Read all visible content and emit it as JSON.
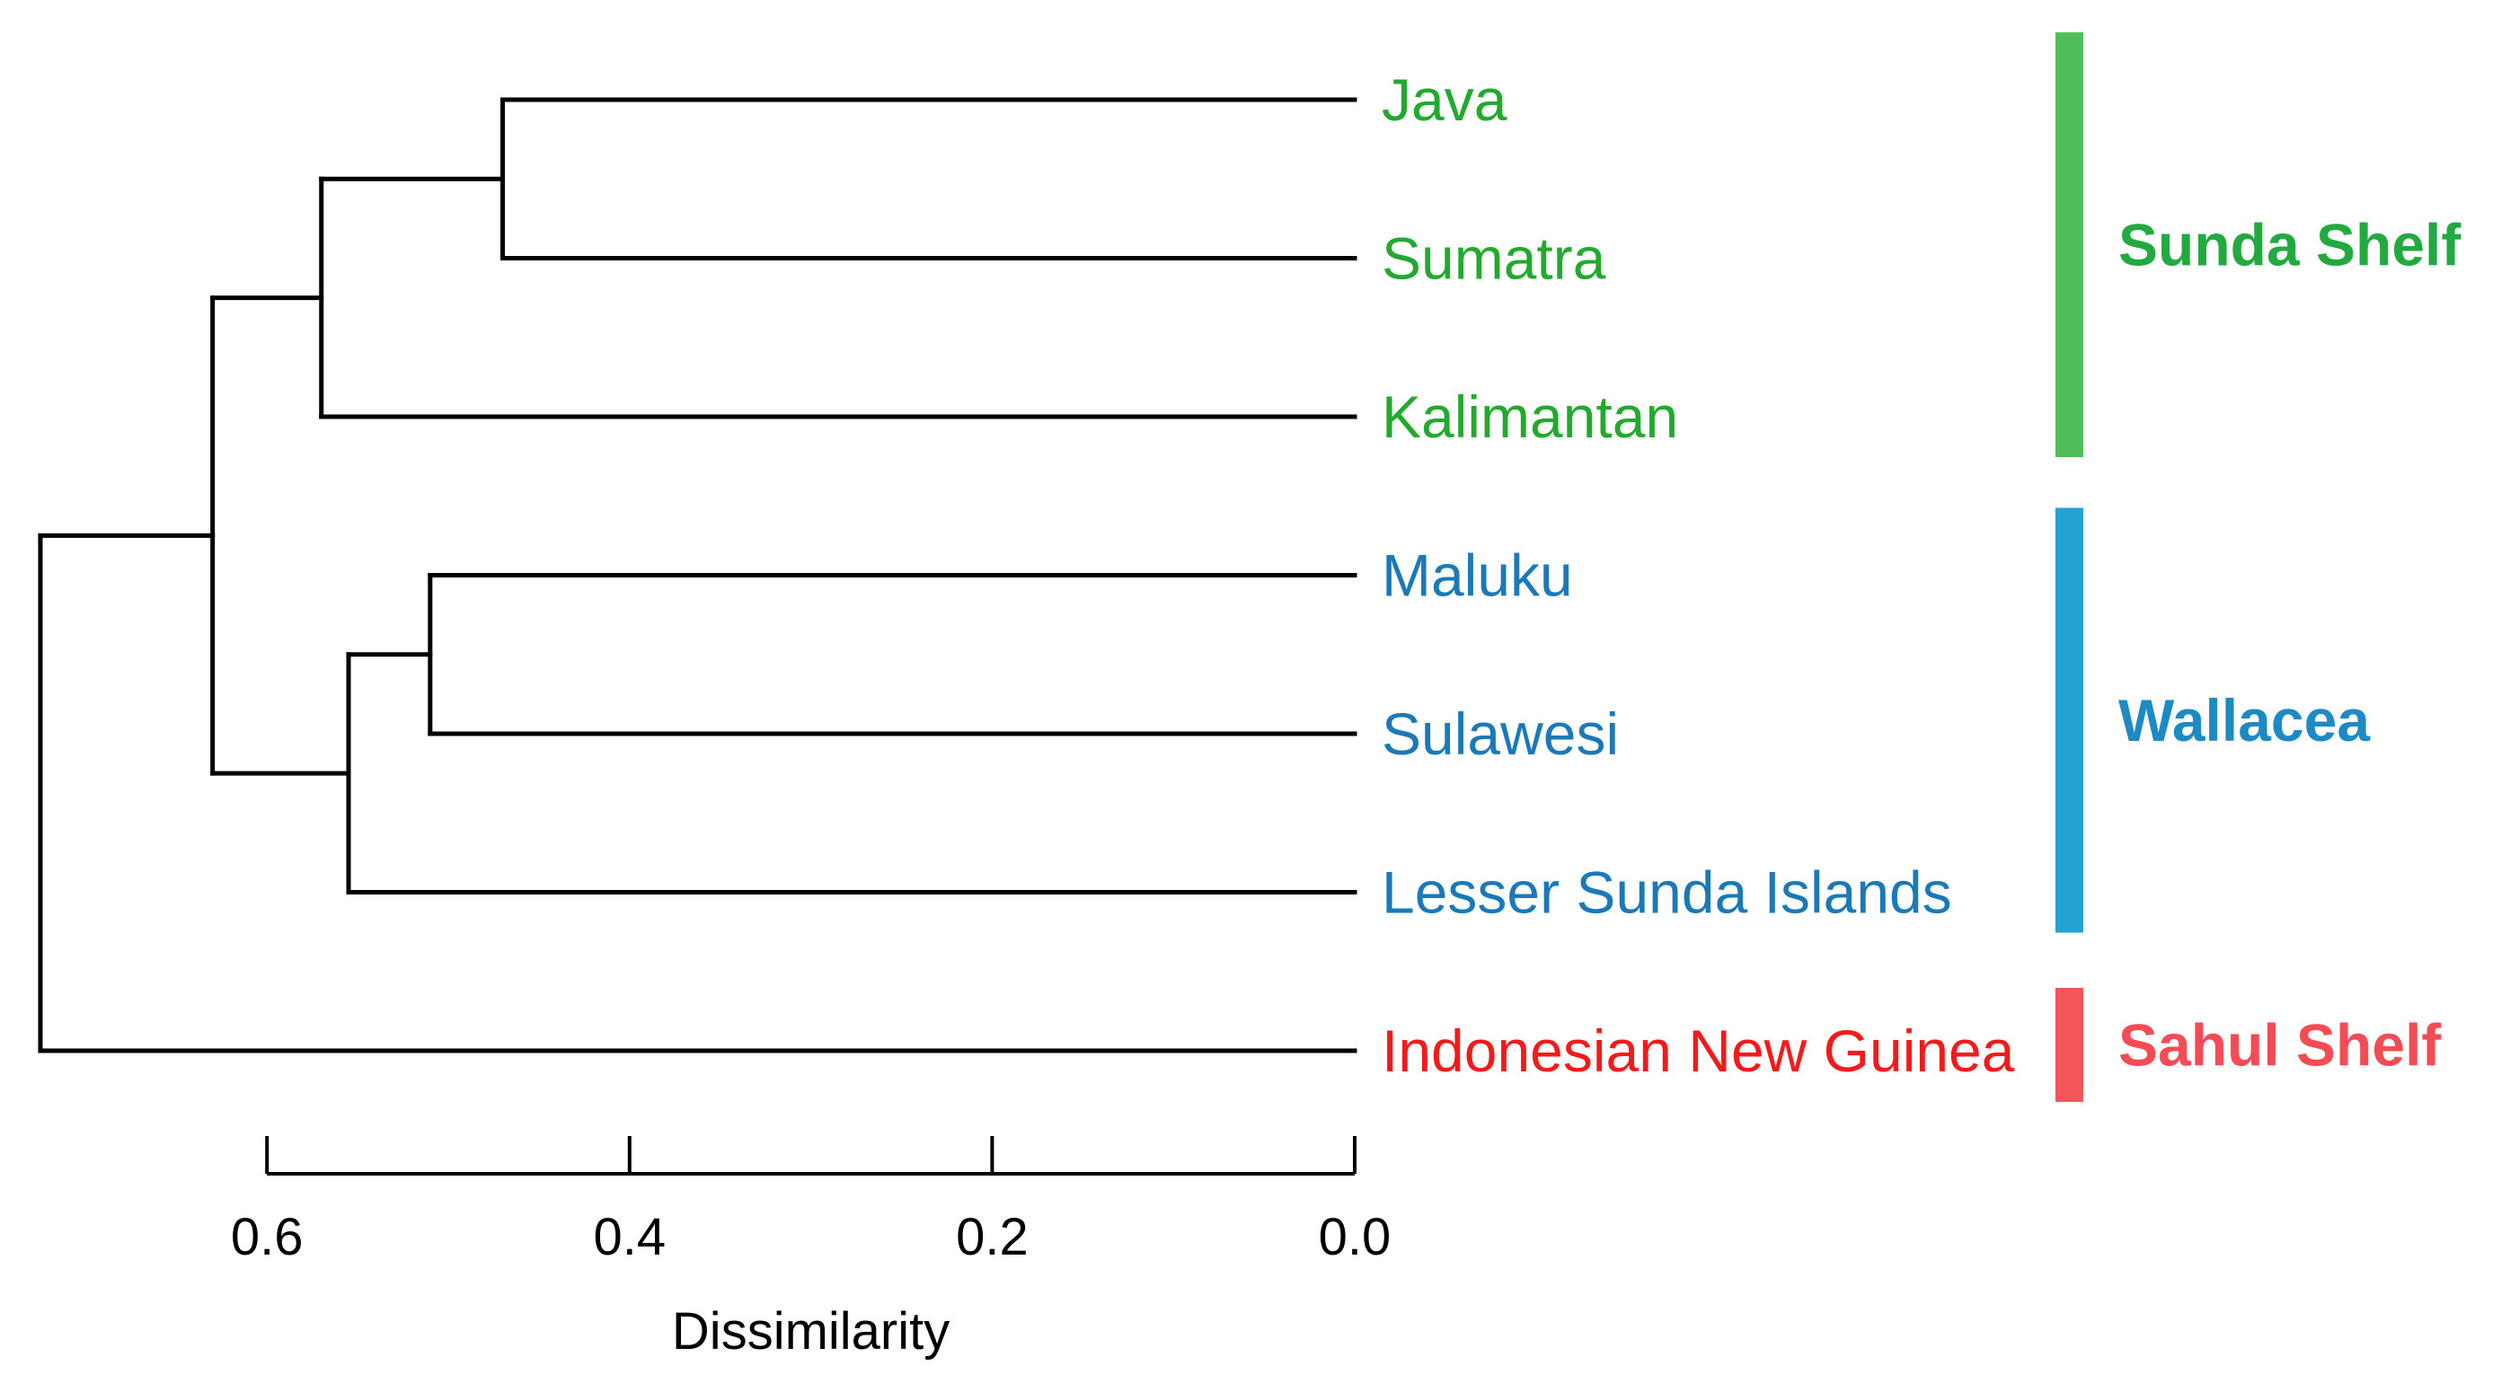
{
  "chart_data": {
    "type": "dendrogram",
    "orientation": "horizontal",
    "xlabel": "Dissimilarity",
    "xlim": [
      0.75,
      0.0
    ],
    "xticks": [
      0.6,
      0.4,
      0.2,
      0.0
    ],
    "xtick_labels": [
      "0.6",
      "0.4",
      "0.2",
      "0.0"
    ],
    "leaves": [
      {
        "label": "Java",
        "group": 0
      },
      {
        "label": "Sumatra",
        "group": 0
      },
      {
        "label": "Kalimantan",
        "group": 0
      },
      {
        "label": "Maluku",
        "group": 1
      },
      {
        "label": "Sulawesi",
        "group": 1
      },
      {
        "label": "Lesser Sunda Islands",
        "group": 1
      },
      {
        "label": "Indonesian New Guinea",
        "group": 2
      }
    ],
    "merges": [
      {
        "id": "m1",
        "children": [
          "Java",
          "Sumatra"
        ],
        "height": 0.47
      },
      {
        "id": "m2",
        "children": [
          "m1",
          "Kalimantan"
        ],
        "height": 0.57
      },
      {
        "id": "m3",
        "children": [
          "Maluku",
          "Sulawesi"
        ],
        "height": 0.51
      },
      {
        "id": "m4",
        "children": [
          "m3",
          "Lesser Sunda Islands"
        ],
        "height": 0.555
      },
      {
        "id": "m5",
        "children": [
          "m2",
          "m4"
        ],
        "height": 0.63
      },
      {
        "id": "m6",
        "children": [
          "m5",
          "Indonesian New Guinea"
        ],
        "height": 0.725
      }
    ],
    "groups": [
      {
        "name": "Sunda Shelf",
        "label_color": "#22a940",
        "bar_color": "#4fbf5b",
        "leaf_color": "#22a92e"
      },
      {
        "name": "Wallacea",
        "label_color": "#1e8ac4",
        "bar_color": "#23a2d4",
        "leaf_color": "#1b79b8"
      },
      {
        "name": "Sahul Shelf",
        "label_color": "#f44c55",
        "bar_color": "#f4565c",
        "leaf_color": "#f21b1b"
      }
    ]
  }
}
